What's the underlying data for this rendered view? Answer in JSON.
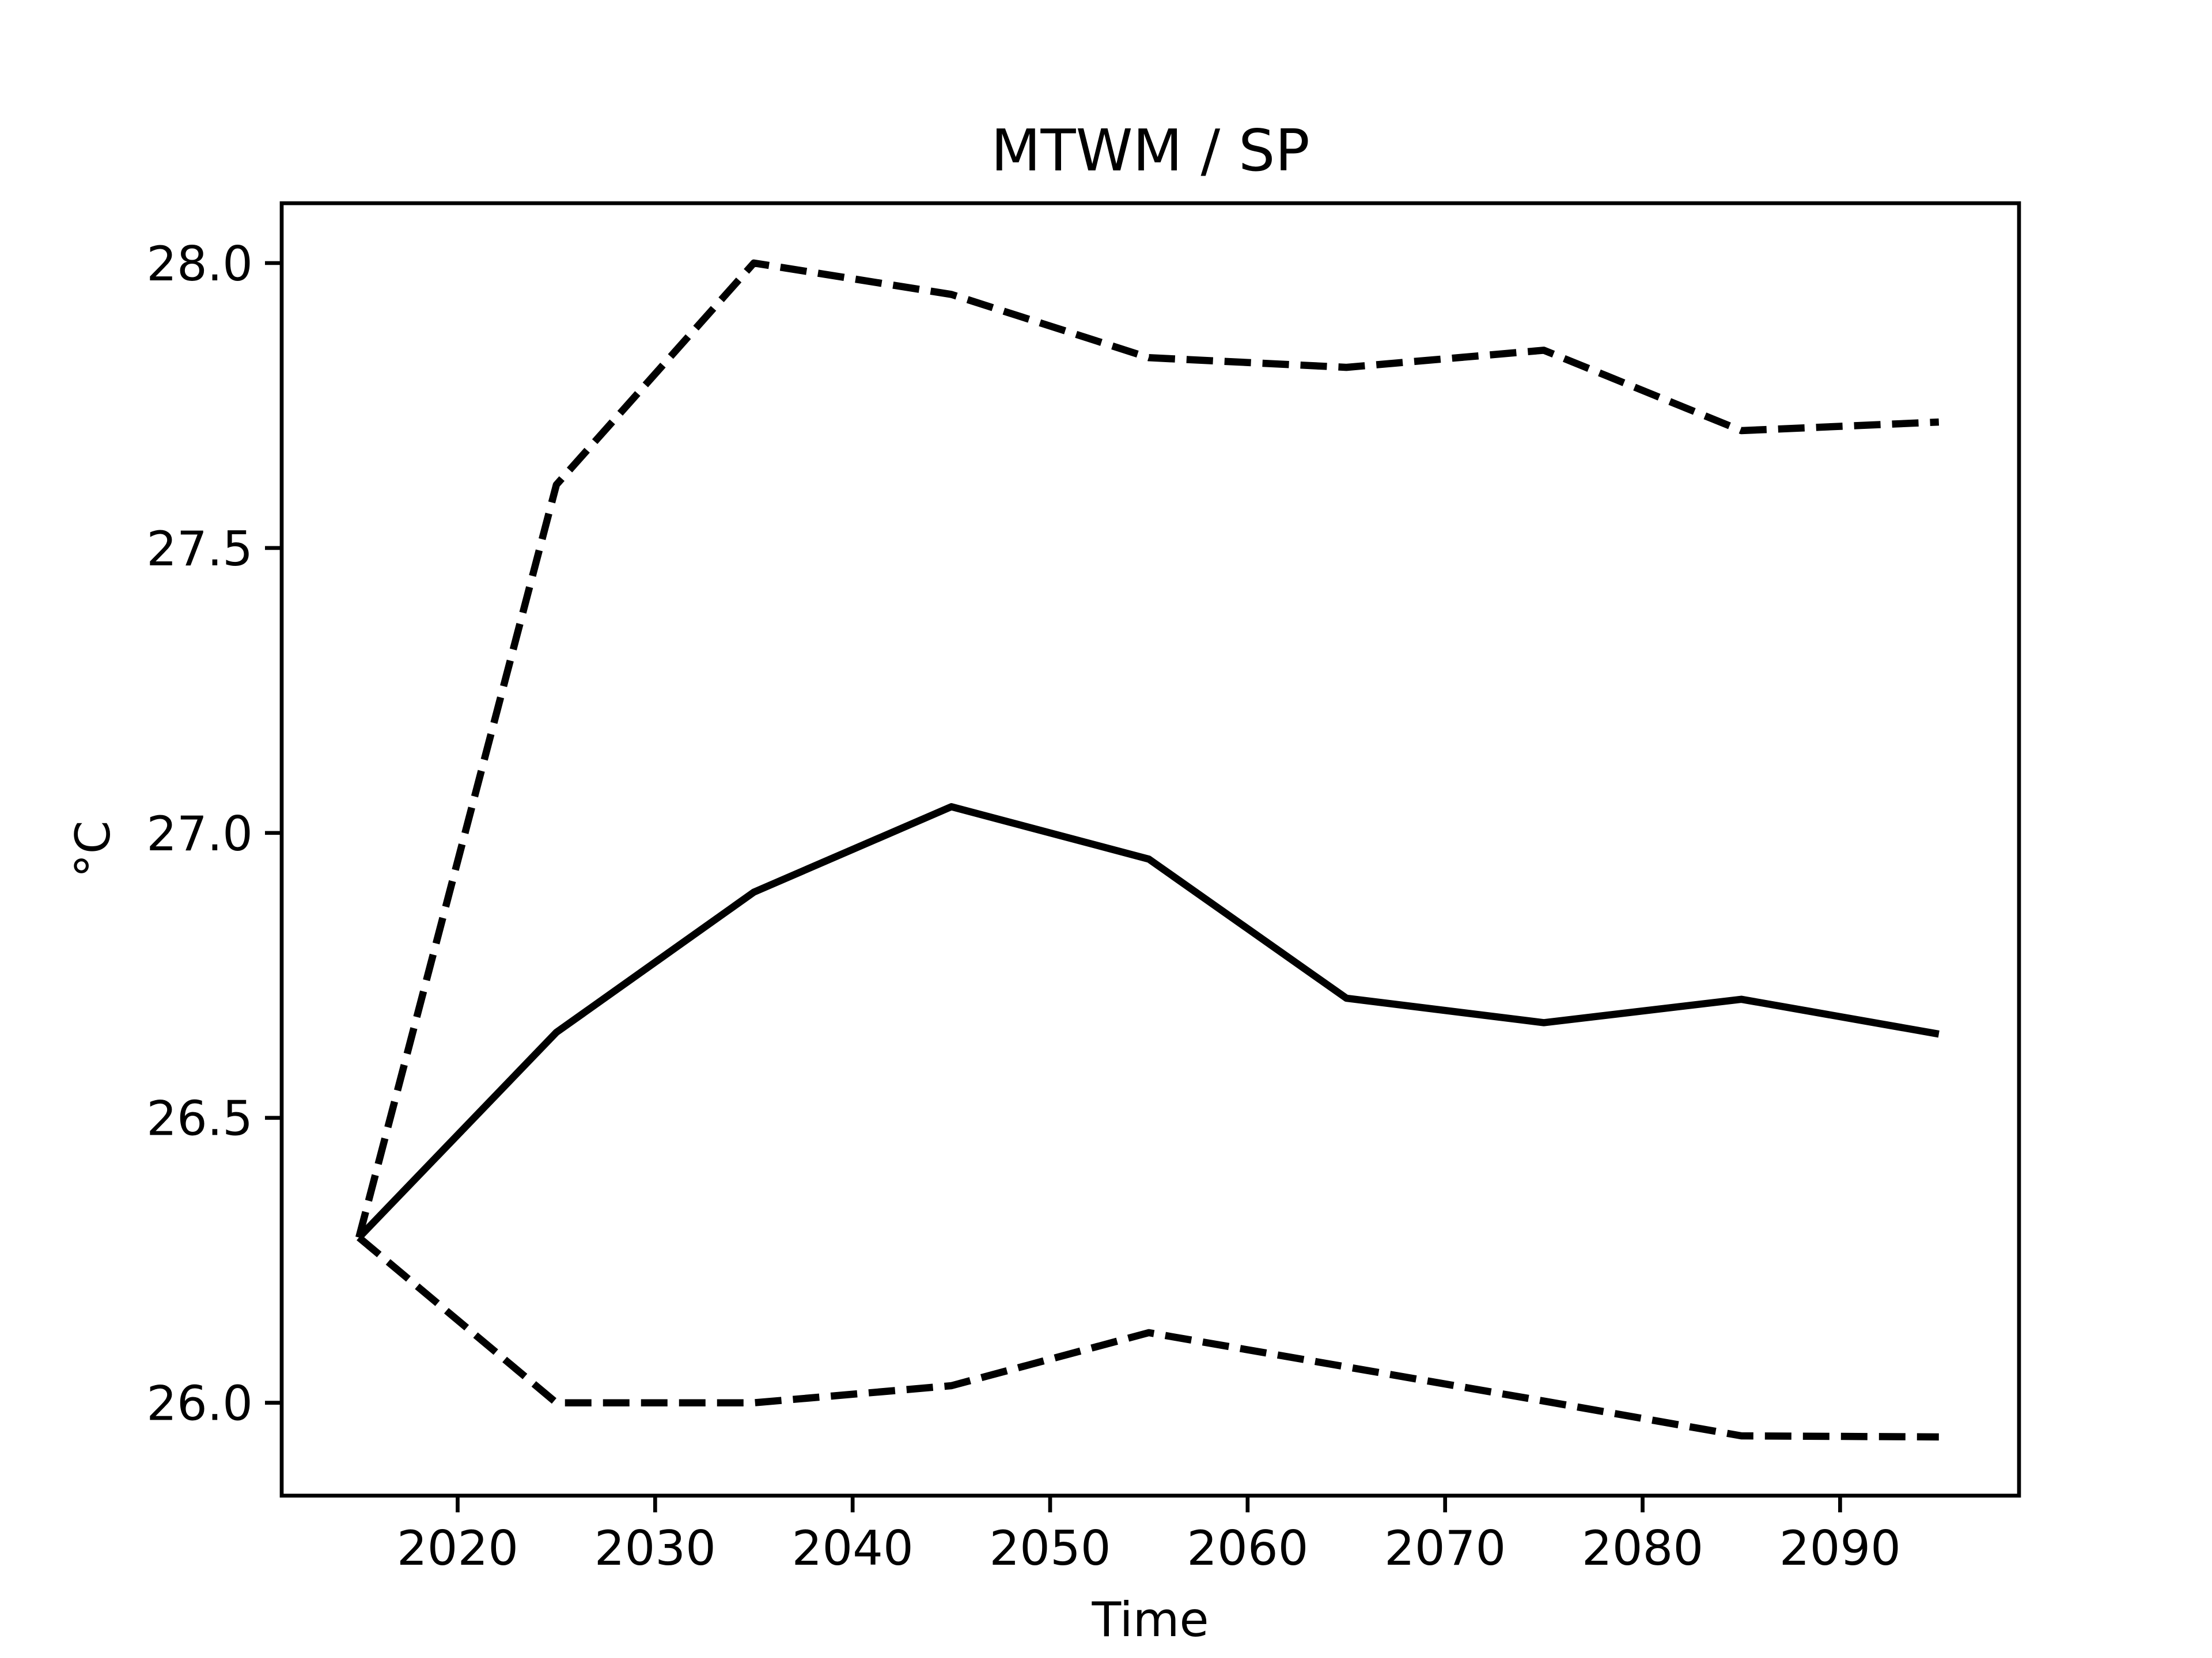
{
  "chart_data": {
    "type": "line",
    "title": "MTWM / SP",
    "xlabel": "Time",
    "ylabel": "°C",
    "x": [
      2015,
      2025,
      2035,
      2045,
      2055,
      2065,
      2075,
      2085,
      2095
    ],
    "series": [
      {
        "color": "#000000",
        "dashed": false,
        "values": [
          26.29,
          26.65,
          26.896,
          27.046,
          26.954,
          26.71,
          26.667,
          26.708,
          26.647
        ]
      },
      {
        "color": "#000000",
        "dashed": true,
        "values": [
          26.29,
          27.611,
          28.0,
          27.945,
          27.834,
          27.817,
          27.847,
          27.706,
          27.721
        ]
      },
      {
        "color": "#000000",
        "dashed": true,
        "values": [
          26.29,
          26.0,
          26.0,
          26.03,
          26.123,
          26.063,
          26.003,
          25.942,
          25.94
        ]
      }
    ],
    "xlim": [
      2011.09,
      2099.06
    ],
    "ylim": [
      25.837,
      28.105
    ],
    "xticks": [
      2020,
      2030,
      2040,
      2050,
      2060,
      2070,
      2080,
      2090
    ],
    "yticks": [
      {
        "value": 26,
        "label": "26.0"
      },
      26.5,
      {
        "value": 27,
        "label": "27.0"
      },
      27.5,
      {
        "value": 28,
        "label": "28.0"
      }
    ],
    "grid": false
  }
}
